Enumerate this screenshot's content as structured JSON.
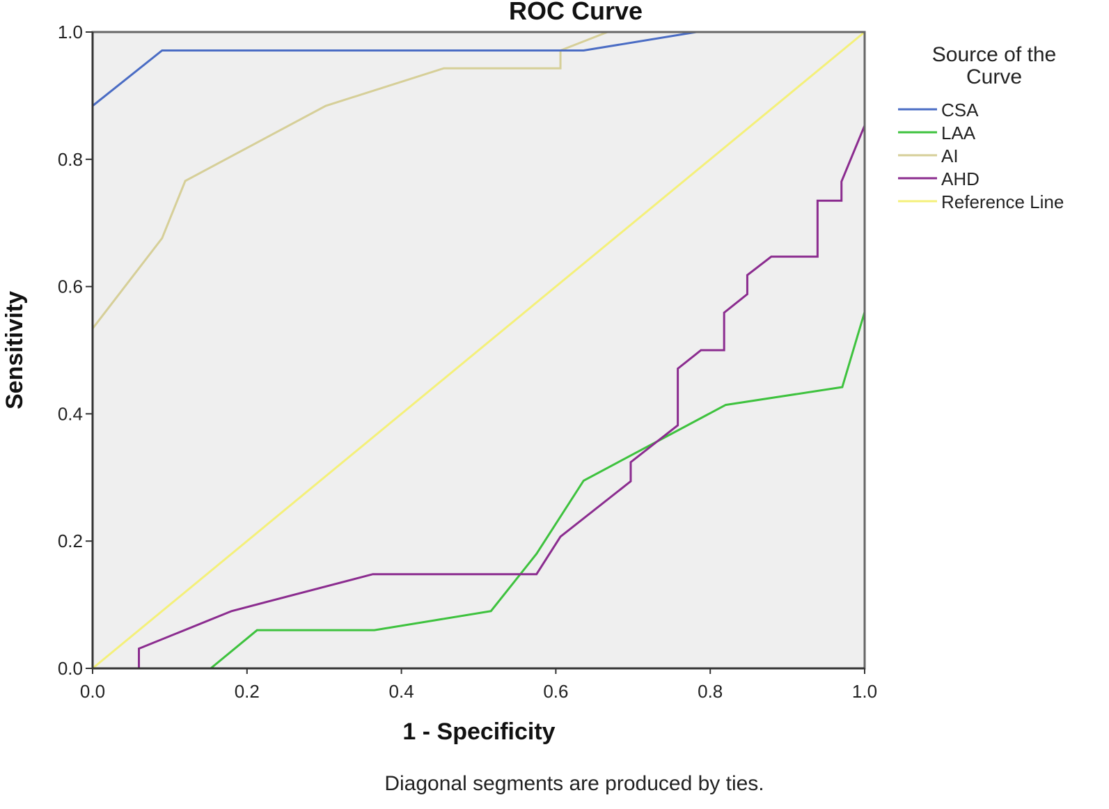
{
  "chart_data": {
    "type": "line",
    "title": "ROC Curve",
    "xlabel": "1 - Specificity",
    "ylabel": "Sensitivity",
    "footnote": "Diagonal segments are produced by ties.",
    "xlim": [
      0,
      1
    ],
    "ylim": [
      0,
      1
    ],
    "xticks": [
      "0.0",
      "0.2",
      "0.4",
      "0.6",
      "0.8",
      "1.0"
    ],
    "yticks": [
      "0.0",
      "0.2",
      "0.4",
      "0.6",
      "0.8",
      "1.0"
    ],
    "grid": false,
    "background": "#efefef",
    "legend": {
      "title_line1": "Source of the",
      "title_line2": "Curve",
      "placement": "right"
    },
    "series": [
      {
        "name": "CSA",
        "color": "#4a6cc4",
        "points": [
          [
            0,
            0
          ],
          [
            0,
            0.884
          ],
          [
            0.09,
            0.971
          ],
          [
            0.636,
            0.971
          ],
          [
            0.782,
            1.0
          ],
          [
            1,
            1
          ]
        ]
      },
      {
        "name": "LAA",
        "color": "#3ec23e",
        "points": [
          [
            0,
            0
          ],
          [
            0.153,
            0
          ],
          [
            0.213,
            0.06
          ],
          [
            0.365,
            0.06
          ],
          [
            0.516,
            0.09
          ],
          [
            0.575,
            0.18
          ],
          [
            0.636,
            0.295
          ],
          [
            0.82,
            0.414
          ],
          [
            0.971,
            0.442
          ],
          [
            1.0,
            0.56
          ],
          [
            1.0,
            1.0
          ]
        ]
      },
      {
        "name": "AI",
        "color": "#d6cf98",
        "points": [
          [
            0,
            0
          ],
          [
            0,
            0.534
          ],
          [
            0.09,
            0.676
          ],
          [
            0.12,
            0.766
          ],
          [
            0.302,
            0.884
          ],
          [
            0.455,
            0.943
          ],
          [
            0.606,
            0.943
          ],
          [
            0.606,
            0.971
          ],
          [
            0.667,
            1.0
          ],
          [
            1,
            1
          ]
        ]
      },
      {
        "name": "AHD",
        "color": "#8b2c8f",
        "points": [
          [
            0,
            0
          ],
          [
            0.06,
            0
          ],
          [
            0.06,
            0.031
          ],
          [
            0.18,
            0.09
          ],
          [
            0.363,
            0.148
          ],
          [
            0.575,
            0.148
          ],
          [
            0.606,
            0.207
          ],
          [
            0.697,
            0.294
          ],
          [
            0.697,
            0.324
          ],
          [
            0.758,
            0.382
          ],
          [
            0.758,
            0.471
          ],
          [
            0.788,
            0.5
          ],
          [
            0.818,
            0.5
          ],
          [
            0.818,
            0.559
          ],
          [
            0.848,
            0.588
          ],
          [
            0.848,
            0.618
          ],
          [
            0.879,
            0.647
          ],
          [
            0.939,
            0.647
          ],
          [
            0.939,
            0.735
          ],
          [
            0.97,
            0.735
          ],
          [
            0.97,
            0.765
          ],
          [
            1.0,
            0.853
          ],
          [
            1.0,
            1.0
          ]
        ]
      },
      {
        "name": "Reference Line",
        "color": "#f4f07a",
        "points": [
          [
            0,
            0
          ],
          [
            1,
            1
          ]
        ]
      }
    ]
  }
}
